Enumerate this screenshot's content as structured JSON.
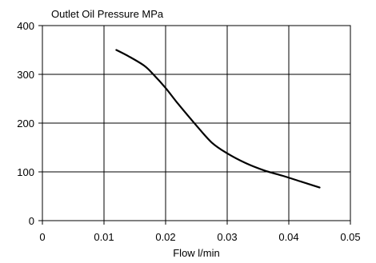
{
  "chart_data": {
    "type": "line",
    "title": "",
    "ylabel": "Outlet Oil Pressure MPa",
    "xlabel": "Flow l/min",
    "xlim": [
      0,
      0.05
    ],
    "ylim": [
      0,
      400
    ],
    "xticks": [
      0,
      0.01,
      0.02,
      0.03,
      0.04,
      0.05
    ],
    "xtick_labels": [
      "0",
      "0.01",
      "0.02",
      "0.03",
      "0.04",
      "0.05"
    ],
    "yticks": [
      0,
      100,
      200,
      300,
      400
    ],
    "ytick_labels": [
      "0",
      "100",
      "200",
      "300",
      "400"
    ],
    "grid": true,
    "legend": "none",
    "series": [
      {
        "color": "#000000",
        "x": [
          0.012,
          0.014,
          0.0165,
          0.018,
          0.02,
          0.022,
          0.025,
          0.0275,
          0.03,
          0.033,
          0.036,
          0.039,
          0.042,
          0.045
        ],
        "y": [
          350,
          337,
          318,
          300,
          272,
          240,
          195,
          160,
          138,
          118,
          103,
          92,
          80,
          68
        ]
      }
    ]
  }
}
